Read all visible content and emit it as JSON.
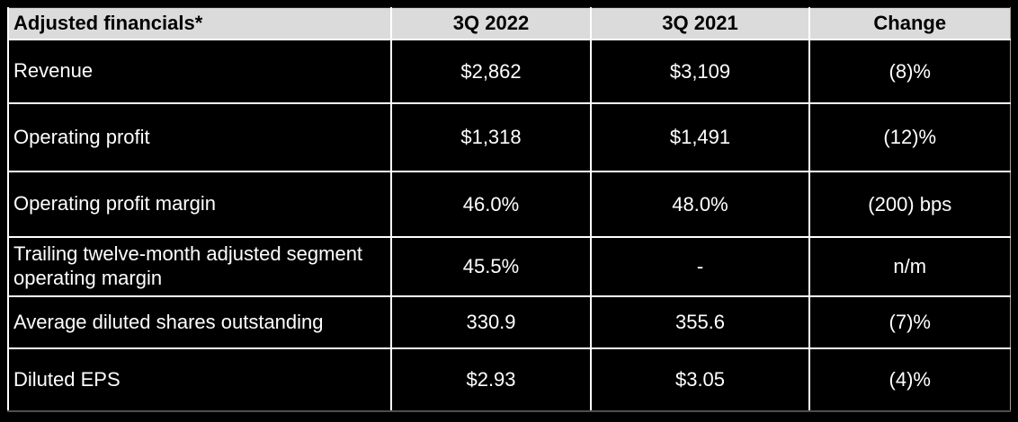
{
  "theme": {
    "page_background": "#000000",
    "header_background": "#dbdbdb",
    "header_text_color": "#000000",
    "body_background": "#000000",
    "body_text_color": "#ffffff",
    "gridline_color": "#ffffff"
  },
  "table": {
    "columns": [
      {
        "header": "Adjusted financials*",
        "align": "left"
      },
      {
        "header": "3Q 2022",
        "align": "center"
      },
      {
        "header": "3Q 2021",
        "align": "center"
      },
      {
        "header": "Change",
        "align": "center"
      }
    ],
    "rows": [
      {
        "label": "Revenue",
        "q3_2022": "$2,862",
        "q3_2021": "$3,109",
        "change": "(8)%"
      },
      {
        "label": "Operating profit",
        "q3_2022": "$1,318",
        "q3_2021": "$1,491",
        "change": "(12)%"
      },
      {
        "label": "Operating profit margin",
        "q3_2022": "46.0%",
        "q3_2021": "48.0%",
        "change": "(200) bps"
      },
      {
        "label": "Trailing twelve-month adjusted segment operating margin",
        "q3_2022": "45.5%",
        "q3_2021": "-",
        "change": "n/m"
      },
      {
        "label": "Average diluted shares outstanding",
        "q3_2022": "330.9",
        "q3_2021": "355.6",
        "change": "(7)%"
      },
      {
        "label": "Diluted EPS",
        "q3_2022": "$2.93",
        "q3_2021": "$3.05",
        "change": "(4)%"
      }
    ]
  },
  "chart_data": {
    "type": "table",
    "title": "Adjusted financials*",
    "columns": [
      "Adjusted financials*",
      "3Q 2022",
      "3Q 2021",
      "Change"
    ],
    "rows": [
      [
        "Revenue",
        "$2,862",
        "$3,109",
        "(8)%"
      ],
      [
        "Operating profit",
        "$1,318",
        "$1,491",
        "(12)%"
      ],
      [
        "Operating profit margin",
        "46.0%",
        "48.0%",
        "(200) bps"
      ],
      [
        "Trailing twelve-month adjusted segment operating margin",
        "45.5%",
        "-",
        "n/m"
      ],
      [
        "Average diluted shares outstanding",
        "330.9",
        "355.6",
        "(7)%"
      ],
      [
        "Diluted EPS",
        "$2.93",
        "$3.05",
        "(4)%"
      ]
    ]
  }
}
